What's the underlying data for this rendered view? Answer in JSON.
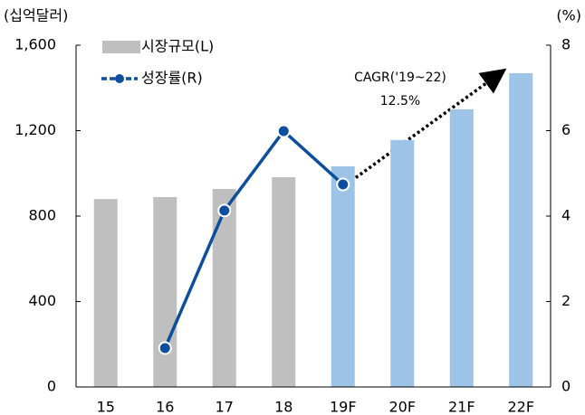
{
  "chart_data": {
    "type": "bar_line",
    "y_label": "(십억달러)",
    "y2_label": "(%)",
    "categories": [
      "15",
      "16",
      "17",
      "18",
      "19F",
      "20F",
      "21F",
      "22F"
    ],
    "series": [
      {
        "name": "시장규모(L)",
        "type": "bar",
        "color": "#bfbfbf",
        "colors": [
          "#bfbfbf",
          "#bfbfbf",
          "#bfbfbf",
          "#bfbfbf",
          "#9dc3e6",
          "#9dc3e6",
          "#9dc3e6",
          "#9dc3e6"
        ],
        "values": [
          880,
          889,
          927,
          982,
          1033,
          1156,
          1300,
          1469
        ]
      },
      {
        "name": "성장률(R)",
        "type": "line",
        "axis": "y2",
        "color": "#0d4f9e",
        "values": [
          null,
          0.91,
          4.13,
          5.99,
          4.74,
          null,
          null,
          null
        ]
      }
    ],
    "ylim": [
      0,
      1600
    ],
    "yticks": [
      0,
      400,
      800,
      {
        "value": 1200,
        "label": "1,200"
      },
      {
        "value": 1600,
        "label": "1,600"
      }
    ],
    "y2lim": [
      0,
      8
    ],
    "y2ticks": [
      0,
      2,
      4,
      6,
      8
    ],
    "annotations": [
      "CAGR('19~22)",
      "12.5%"
    ]
  }
}
